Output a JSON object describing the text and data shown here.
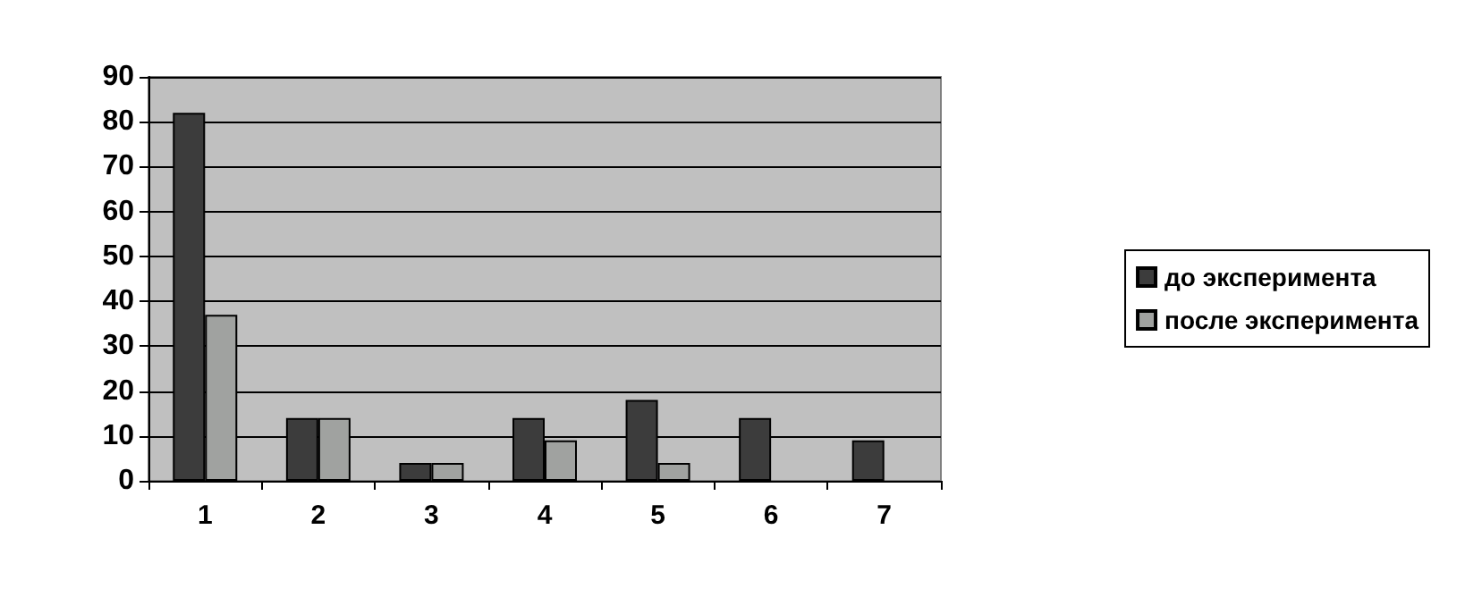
{
  "chart_data": {
    "type": "bar",
    "categories": [
      "1",
      "2",
      "3",
      "4",
      "5",
      "6",
      "7"
    ],
    "series": [
      {
        "name": "до эксперимента",
        "color": "#3c3c3c",
        "values": [
          82,
          14,
          4,
          14,
          18,
          14,
          9
        ]
      },
      {
        "name": "после эксперимента",
        "color": "#a0a2a0",
        "values": [
          37,
          14,
          4,
          9,
          4,
          0,
          0
        ]
      }
    ],
    "ylim": [
      0,
      90
    ],
    "yticks": [
      0,
      10,
      20,
      30,
      40,
      50,
      60,
      70,
      80,
      90
    ],
    "grid": "y",
    "legend": "right"
  }
}
